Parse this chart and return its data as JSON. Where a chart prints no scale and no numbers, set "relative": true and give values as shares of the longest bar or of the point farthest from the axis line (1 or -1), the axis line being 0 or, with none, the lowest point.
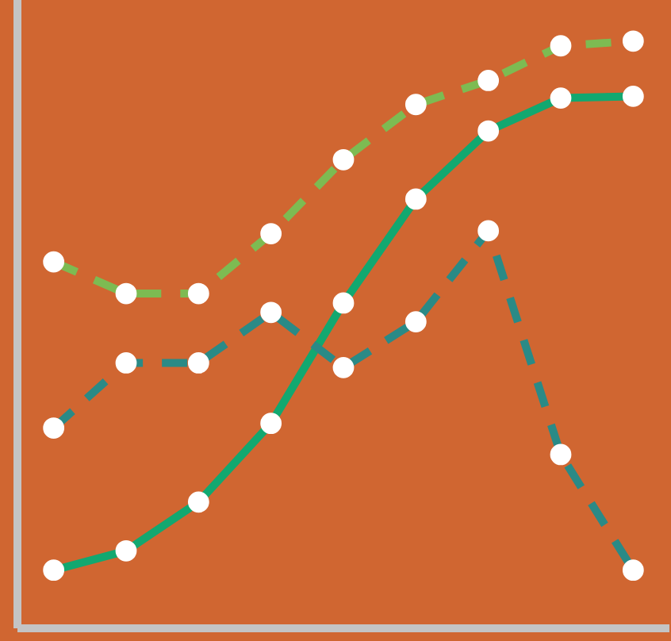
{
  "chart_data": {
    "type": "line",
    "relative": true,
    "categories": [
      null,
      null,
      null,
      null,
      null,
      null,
      null,
      null,
      null
    ],
    "series": [
      {
        "color": "#7dbb52",
        "line_style": "dashed",
        "values": [
          0.624,
          0.57,
          0.57,
          0.672,
          0.798,
          0.892,
          0.933,
          0.992,
          1.0
        ]
      },
      {
        "color": "#12a870",
        "line_style": "solid",
        "values": [
          0.099,
          0.132,
          0.215,
          0.349,
          0.554,
          0.731,
          0.847,
          0.903,
          0.906
        ]
      },
      {
        "color": "#2a8a86",
        "line_style": "dashed",
        "values": [
          0.341,
          0.452,
          0.452,
          0.538,
          0.444,
          0.522,
          0.677,
          0.296,
          0.099
        ]
      }
    ],
    "marker": "circle"
  }
}
